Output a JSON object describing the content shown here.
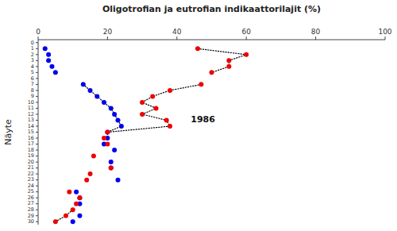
{
  "chart_data": {
    "type": "scatter",
    "title": "Oligotrofian ja eutrofian indikaattorilajit (%)",
    "ylabel": "Näyte",
    "xlim": [
      0,
      100
    ],
    "xticks": [
      0,
      20,
      40,
      60,
      80,
      100
    ],
    "ylim": [
      30.5,
      -0.5
    ],
    "yticks": [
      0,
      1,
      2,
      3,
      4,
      5,
      6,
      7,
      8,
      9,
      10,
      11,
      12,
      13,
      14,
      15,
      16,
      17,
      18,
      19,
      20,
      21,
      22,
      23,
      24,
      25,
      26,
      27,
      28,
      29,
      30
    ],
    "grid": false,
    "series": [
      {
        "type": "line",
        "line_style": "dotted",
        "color": "#000000",
        "x": [
          13,
          15,
          17,
          19,
          21,
          22,
          23,
          24,
          20,
          20
        ],
        "values": [
          7,
          8,
          9,
          10,
          11,
          12,
          13,
          14,
          15,
          16
        ]
      },
      {
        "type": "line",
        "line_style": "dotted",
        "color": "#000000",
        "x": [
          46,
          60,
          55,
          55,
          50
        ],
        "values": [
          1,
          2,
          3,
          4,
          5
        ]
      },
      {
        "type": "line",
        "line_style": "dotted",
        "color": "#000000",
        "x": [
          47,
          38,
          33,
          30,
          34,
          30,
          37,
          38,
          20
        ],
        "values": [
          7,
          8,
          9,
          10,
          11,
          12,
          13,
          14,
          15
        ]
      },
      {
        "type": "line",
        "line_style": "dotted",
        "color": "#000000",
        "x": [
          10,
          8,
          5
        ],
        "values": [
          28,
          29,
          30
        ]
      },
      {
        "type": "scatter",
        "marker": "circle",
        "color": "#0000ee",
        "x": [
          2,
          3,
          3,
          4,
          5,
          13,
          15,
          17,
          19,
          21,
          22,
          23,
          24,
          20,
          20,
          19,
          22,
          21,
          21,
          23,
          11,
          12,
          12,
          12,
          10
        ],
        "values": [
          1,
          2,
          3,
          4,
          5,
          7,
          8,
          9,
          10,
          11,
          12,
          13,
          14,
          15,
          16,
          17,
          18,
          20,
          21,
          23,
          25,
          26,
          27,
          29,
          30
        ]
      },
      {
        "type": "scatter",
        "marker": "circle",
        "color": "#ee0000",
        "x": [
          46,
          60,
          55,
          55,
          50,
          47,
          38,
          33,
          30,
          34,
          30,
          37,
          38,
          20,
          19,
          20,
          16,
          21,
          15,
          14,
          9,
          12,
          11,
          10,
          8,
          5
        ],
        "values": [
          1,
          2,
          3,
          4,
          5,
          7,
          8,
          9,
          10,
          11,
          12,
          13,
          14,
          15,
          16,
          17,
          19,
          21,
          22,
          23,
          25,
          26,
          27,
          28,
          29,
          30
        ]
      }
    ],
    "annotations": [
      {
        "text": "1986",
        "x": 44,
        "y": 13
      }
    ]
  }
}
